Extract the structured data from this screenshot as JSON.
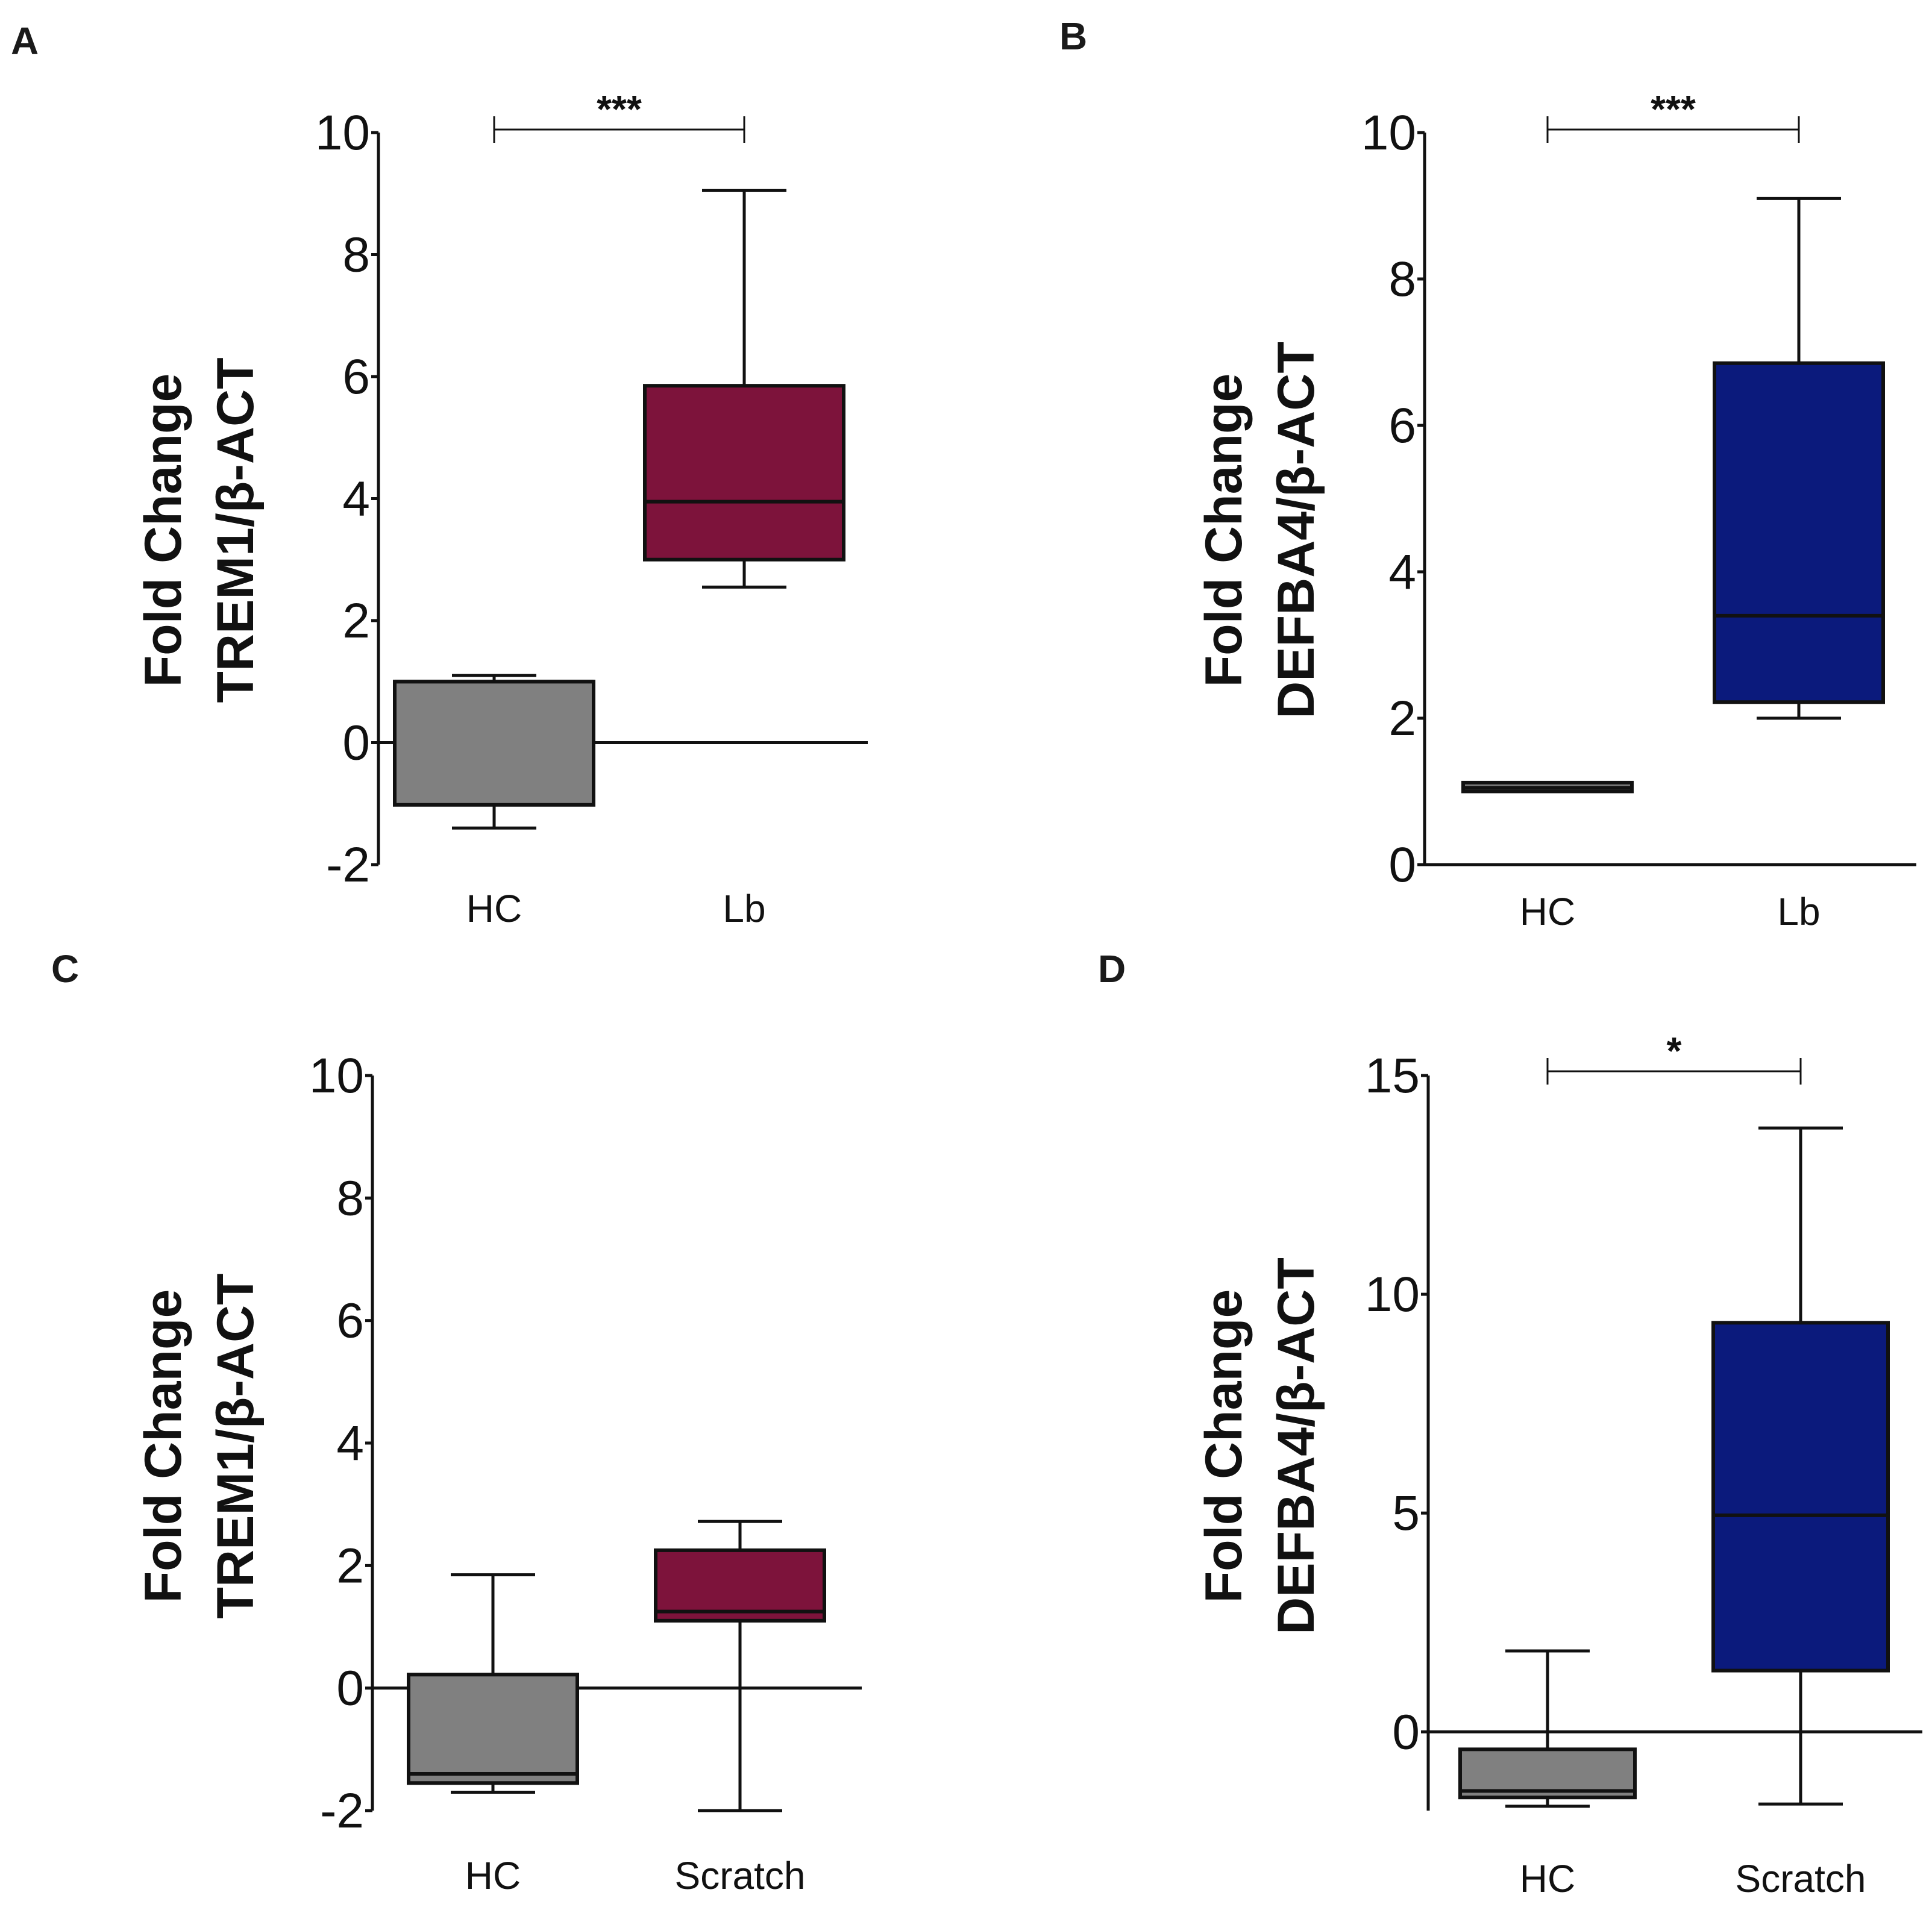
{
  "colors": {
    "hc": "#808080",
    "trem1": "#7d133b",
    "defba4": "#0b1a7c",
    "ink": "#111111"
  },
  "chart_data": [
    {
      "panel": "A",
      "type": "box",
      "ylabel_line1": "Fold Change",
      "ylabel_line2": "TREM1/β-ACT",
      "ylim": [
        -2,
        10
      ],
      "yticks": [
        "-2",
        "0",
        "2",
        "4",
        "6",
        "8",
        "10"
      ],
      "zero_line": true,
      "categories": [
        "HC",
        "Lb"
      ],
      "boxes": [
        {
          "category": "HC",
          "min": -1.4,
          "q1": -1.02,
          "median": 1.0,
          "q3": 1.0,
          "max": 1.1,
          "color": "hc"
        },
        {
          "category": "Lb",
          "min": 2.55,
          "q1": 3.0,
          "median": 3.95,
          "q3": 5.85,
          "max": 9.05,
          "color": "trem1"
        }
      ],
      "significance": {
        "label": "***",
        "from": "HC",
        "to": "Lb"
      }
    },
    {
      "panel": "B",
      "type": "box",
      "ylabel_line1": "Fold Change",
      "ylabel_line2": "DEFBA4/β-ACT",
      "ylim": [
        0,
        10
      ],
      "yticks": [
        "0",
        "2",
        "4",
        "6",
        "8",
        "10"
      ],
      "zero_line": false,
      "categories": [
        "HC",
        "Lb"
      ],
      "boxes": [
        {
          "category": "HC",
          "min": 1.0,
          "q1": 1.0,
          "median": 1.05,
          "q3": 1.12,
          "max": 1.12,
          "color": "hc"
        },
        {
          "category": "Lb",
          "min": 2.0,
          "q1": 2.22,
          "median": 3.4,
          "q3": 6.85,
          "max": 9.1,
          "color": "defba4"
        }
      ],
      "significance": {
        "label": "***",
        "from": "HC",
        "to": "Lb"
      }
    },
    {
      "panel": "C",
      "type": "box",
      "ylabel_line1": "Fold Change",
      "ylabel_line2": "TREM1/β-ACT",
      "ylim": [
        -2,
        10
      ],
      "yticks": [
        "-2",
        "0",
        "2",
        "4",
        "6",
        "8",
        "10"
      ],
      "zero_line": true,
      "categories": [
        "HC",
        "Scratch"
      ],
      "boxes": [
        {
          "category": "HC",
          "min": -1.7,
          "q1": -1.55,
          "median": -1.4,
          "q3": 0.22,
          "max": 1.85,
          "color": "hc"
        },
        {
          "category": "Scratch",
          "min": -2.0,
          "q1": 1.1,
          "median": 1.25,
          "q3": 2.25,
          "max": 2.72,
          "color": "trem1"
        }
      ],
      "significance": null
    },
    {
      "panel": "D",
      "type": "box",
      "ylabel_line1": "Fold Change",
      "ylabel_line2": "DEFBA4/β-ACT",
      "ylim": [
        -1.8,
        15
      ],
      "yticks": [
        "0",
        "5",
        "10",
        "15"
      ],
      "ytick_values": [
        0,
        5,
        10,
        15
      ],
      "zero_line": true,
      "categories": [
        "HC",
        "Scratch"
      ],
      "boxes": [
        {
          "category": "HC",
          "min": -1.7,
          "q1": -1.5,
          "median": -1.35,
          "q3": -0.4,
          "max": 1.85,
          "color": "hc"
        },
        {
          "category": "Scratch",
          "min": -1.65,
          "q1": 1.4,
          "median": 4.95,
          "q3": 9.35,
          "max": 13.8,
          "color": "defba4"
        }
      ],
      "significance": {
        "label": "*",
        "from": "HC",
        "to": "Scratch"
      }
    }
  ]
}
